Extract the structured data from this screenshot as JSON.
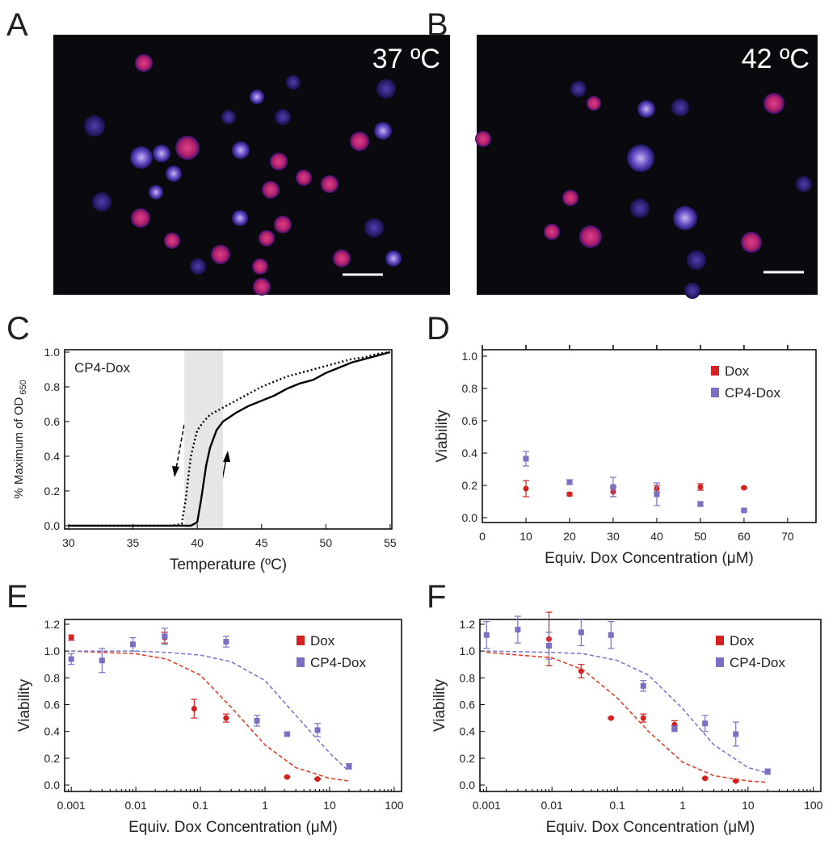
{
  "images": [
    {
      "label": "A",
      "caption": "37 ºC"
    },
    {
      "label": "B",
      "caption": "42 ºC"
    }
  ],
  "chart_data": [
    {
      "type": "line",
      "panel_label": "C",
      "annotation": "CP4-Dox",
      "xlabel": "Temperature (ºC)",
      "ylabel": "% Maximum of OD",
      "ylabel_sub": "650",
      "xlim": [
        29.69,
        55.13
      ],
      "ylim": [
        -0.019,
        1.014
      ],
      "xticks": [
        30,
        35,
        40,
        45,
        50,
        55
      ],
      "yticks": [
        {
          "value": 0,
          "label": "0.0"
        },
        {
          "value": 0.2,
          "label": "0.2"
        },
        {
          "value": 0.4,
          "label": "0.4"
        },
        {
          "value": 0.6,
          "label": "0.6"
        },
        {
          "value": 0.8,
          "label": "0.8"
        },
        {
          "value": 1,
          "label": "1.0"
        }
      ],
      "shaded_range": [
        39,
        42
      ],
      "shade_color": "#e6e6e6",
      "series": [
        {
          "color": "#000000",
          "style": "solid",
          "x": [
            30,
            35,
            38,
            39.5,
            40,
            40.3,
            40.7,
            41,
            41.5,
            42,
            43,
            44,
            45,
            46,
            47,
            48,
            49,
            50,
            51,
            52,
            53,
            54,
            55
          ],
          "values": [
            0,
            0,
            0,
            0,
            0.02,
            0.15,
            0.35,
            0.45,
            0.55,
            0.6,
            0.65,
            0.69,
            0.72,
            0.75,
            0.79,
            0.82,
            0.84,
            0.88,
            0.91,
            0.94,
            0.96,
            0.98,
            1.0
          ]
        },
        {
          "color": "#000000",
          "style": "dotted",
          "x": [
            30,
            35,
            38,
            38.8,
            39.1,
            39.5,
            40,
            40.5,
            41,
            42,
            43,
            44,
            45,
            46,
            47,
            48,
            49,
            50,
            51,
            52,
            53,
            54,
            55
          ],
          "values": [
            0,
            0,
            0,
            0.01,
            0.15,
            0.4,
            0.55,
            0.6,
            0.64,
            0.68,
            0.72,
            0.76,
            0.8,
            0.83,
            0.86,
            0.88,
            0.9,
            0.92,
            0.94,
            0.96,
            0.97,
            0.99,
            1.0
          ]
        }
      ]
    },
    {
      "type": "scatter",
      "panel_label": "D",
      "legend": "upper right",
      "xlabel": "Equiv. Dox Concentration (μM)",
      "ylabel": "Viability",
      "xlim": [
        0,
        76.5
      ],
      "ylim": [
        -0.03,
        1.04
      ],
      "xticks": [
        0,
        10,
        20,
        30,
        40,
        50,
        60,
        70
      ],
      "yticks": [
        {
          "value": 0,
          "label": "0.0"
        },
        {
          "value": 0.2,
          "label": "0.2"
        },
        {
          "value": 0.4,
          "label": "0.4"
        },
        {
          "value": 0.6,
          "label": "0.6"
        },
        {
          "value": 0.8,
          "label": "0.8"
        },
        {
          "value": 1,
          "label": "1.0"
        }
      ],
      "series": [
        {
          "name": "Dox",
          "color": "#d42020",
          "marker": "circle",
          "x": [
            10,
            20,
            30,
            40,
            50,
            60
          ],
          "values": [
            0.18,
            0.145,
            0.16,
            0.18,
            0.19,
            0.185
          ],
          "errors": [
            0.05,
            0.01,
            0.03,
            0.02,
            0.02,
            0.005
          ]
        },
        {
          "name": "CP4-Dox",
          "color": "#7b6fc4",
          "marker": "square",
          "x": [
            10,
            20,
            30,
            40,
            50,
            60
          ],
          "values": [
            0.365,
            0.22,
            0.19,
            0.145,
            0.085,
            0.045
          ],
          "errors": [
            0.045,
            0.015,
            0.06,
            0.07,
            0.015,
            0.005
          ]
        }
      ]
    },
    {
      "type": "scatter",
      "panel_label": "E",
      "legend": "upper right",
      "xscale": "log",
      "xlabel": "Equiv. Dox Concentration (μM)",
      "ylabel": "Viability",
      "xlim": [
        0.00079,
        130
      ],
      "ylim": [
        -0.048,
        1.236
      ],
      "xticks": [
        0.001,
        0.01,
        0.1,
        1,
        10,
        100
      ],
      "yticks": [
        {
          "value": 0,
          "label": "0.0"
        },
        {
          "value": 0.2,
          "label": "0.2"
        },
        {
          "value": 0.4,
          "label": "0.4"
        },
        {
          "value": 0.6,
          "label": "0.6"
        },
        {
          "value": 0.8,
          "label": "0.8"
        },
        {
          "value": 1,
          "label": "1.0"
        },
        {
          "value": 1.2,
          "label": "1.2"
        }
      ],
      "series": [
        {
          "name": "Dox",
          "color": "#d42020",
          "marker": "circle",
          "x": [
            0.001,
            0.028,
            0.08,
            0.25,
            2.2,
            6.5
          ],
          "values": [
            1.1,
            1.1,
            0.57,
            0.5,
            0.06,
            0.045
          ],
          "errors": [
            0.02,
            0.04,
            0.07,
            0.03,
            0.005,
            0.005
          ]
        },
        {
          "name": "CP4-Dox",
          "color": "#7b6fc4",
          "marker": "square",
          "x": [
            0.001,
            0.003,
            0.009,
            0.028,
            0.25,
            0.75,
            2.2,
            6.5,
            20
          ],
          "values": [
            0.94,
            0.93,
            1.05,
            1.11,
            1.07,
            0.48,
            0.38,
            0.41,
            0.14
          ],
          "errors": [
            0.04,
            0.09,
            0.05,
            0.06,
            0.04,
            0.04,
            0.01,
            0.05,
            0.02
          ]
        },
        {
          "type": "line",
          "style": "dashed",
          "color": "#e0402a",
          "x": [
            0.001,
            0.01,
            0.03,
            0.1,
            0.3,
            1,
            3,
            10,
            20
          ],
          "values": [
            1.0,
            0.98,
            0.94,
            0.82,
            0.58,
            0.3,
            0.13,
            0.05,
            0.03
          ]
        },
        {
          "type": "line",
          "style": "dashed",
          "color": "#7b78d0",
          "x": [
            0.001,
            0.01,
            0.03,
            0.1,
            0.3,
            1,
            3,
            10,
            20
          ],
          "values": [
            1.0,
            1.0,
            0.99,
            0.97,
            0.92,
            0.78,
            0.52,
            0.24,
            0.1
          ]
        }
      ]
    },
    {
      "type": "scatter",
      "panel_label": "F",
      "legend": "upper right",
      "xscale": "log",
      "xlabel": "Equiv. Dox Concentration (μM)",
      "ylabel": "Viability",
      "xlim": [
        0.00079,
        130
      ],
      "ylim": [
        -0.048,
        1.236
      ],
      "xticks": [
        0.001,
        0.01,
        0.1,
        1,
        10,
        100
      ],
      "yticks": [
        {
          "value": 0,
          "label": "0.0"
        },
        {
          "value": 0.2,
          "label": "0.2"
        },
        {
          "value": 0.4,
          "label": "0.4"
        },
        {
          "value": 0.6,
          "label": "0.6"
        },
        {
          "value": 0.8,
          "label": "0.8"
        },
        {
          "value": 1,
          "label": "1.0"
        },
        {
          "value": 1.2,
          "label": "1.2"
        }
      ],
      "series": [
        {
          "name": "Dox",
          "color": "#d42020",
          "marker": "circle",
          "x": [
            0.009,
            0.028,
            0.08,
            0.25,
            0.75,
            2.2,
            6.5
          ],
          "values": [
            1.09,
            0.85,
            0.5,
            0.5,
            0.45,
            0.05,
            0.03
          ],
          "errors": [
            0.2,
            0.05,
            0.005,
            0.03,
            0.03,
            0.005,
            0.005
          ]
        },
        {
          "name": "CP4-Dox",
          "color": "#7b6fc4",
          "marker": "square",
          "x": [
            0.001,
            0.003,
            0.009,
            0.028,
            0.08,
            0.25,
            0.75,
            2.2,
            6.5,
            20
          ],
          "values": [
            1.12,
            1.16,
            1.04,
            1.14,
            1.12,
            0.74,
            0.42,
            0.46,
            0.38,
            0.1
          ],
          "errors": [
            0.1,
            0.1,
            0.1,
            0.1,
            0.1,
            0.04,
            0.02,
            0.06,
            0.09,
            0.02
          ]
        },
        {
          "type": "line",
          "style": "dashed",
          "color": "#e0402a",
          "x": [
            0.001,
            0.01,
            0.03,
            0.1,
            0.3,
            1,
            3,
            10,
            20
          ],
          "values": [
            0.99,
            0.95,
            0.86,
            0.65,
            0.4,
            0.17,
            0.07,
            0.03,
            0.02
          ]
        },
        {
          "type": "line",
          "style": "dashed",
          "color": "#7b78d0",
          "x": [
            0.001,
            0.01,
            0.03,
            0.1,
            0.3,
            1,
            3,
            10,
            20
          ],
          "values": [
            1.0,
            0.99,
            0.98,
            0.93,
            0.82,
            0.57,
            0.3,
            0.13,
            0.09
          ]
        }
      ]
    }
  ]
}
